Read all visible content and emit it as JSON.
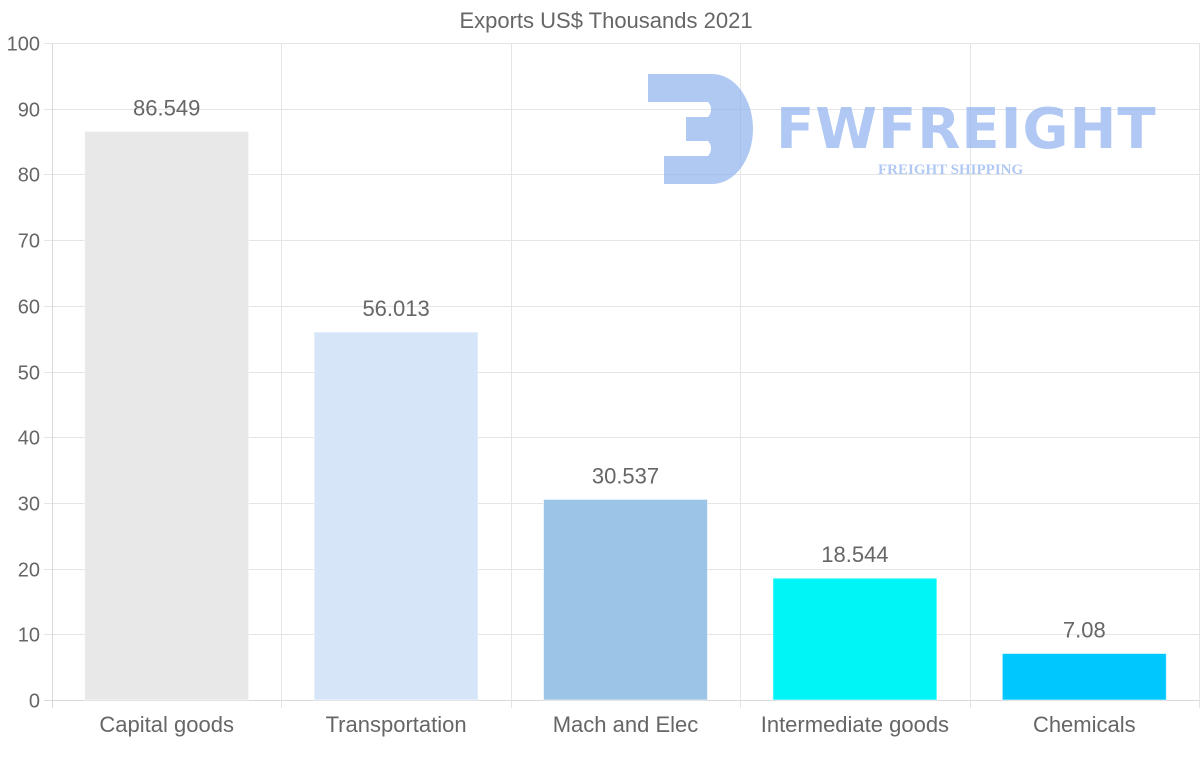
{
  "chart_data": {
    "type": "bar",
    "title": "Exports US$ Thousands 2021",
    "categories": [
      "Capital goods",
      "Transportation",
      "Mach and Elec",
      "Intermediate goods",
      "Chemicals"
    ],
    "values": [
      86.549,
      56.013,
      30.537,
      18.544,
      7.08
    ],
    "value_labels": [
      "86.549",
      "56.013",
      "30.537",
      "18.544",
      "7.08"
    ],
    "colors": [
      "#e8e8e8",
      "#d6e6f8",
      "#9cc4e6",
      "#00f5f7",
      "#00c8ff"
    ],
    "ylim": [
      0,
      100
    ],
    "yticks": [
      0,
      10,
      20,
      30,
      40,
      50,
      60,
      70,
      80,
      90,
      100
    ],
    "xlabel": "",
    "ylabel": "",
    "grid": true,
    "legend": "none"
  },
  "watermark": {
    "brand": "FWFREIGHT",
    "tagline": "FREIGHT SHIPPING",
    "color": "#8fb2ee"
  }
}
